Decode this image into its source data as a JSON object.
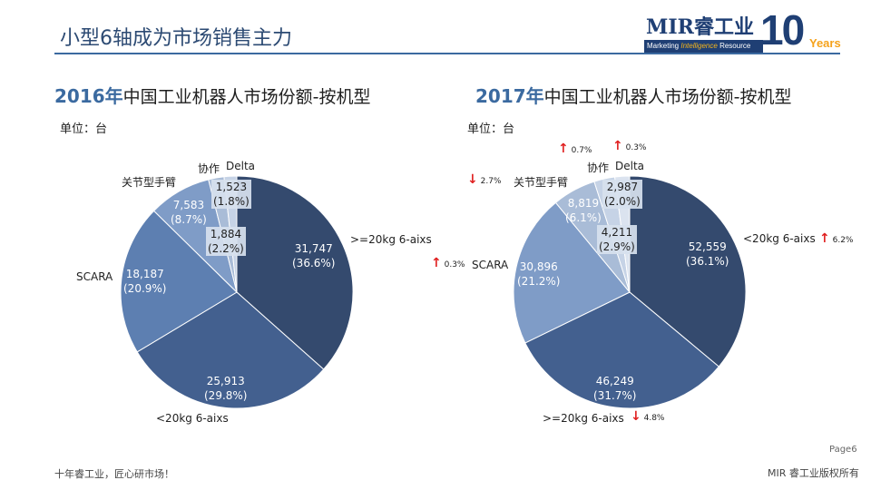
{
  "header": {
    "title": "小型6轴成为市场销售主力",
    "logo": {
      "brand_prefix": "MIR",
      "brand_cn": "睿工业",
      "tagline_a": "Marketing ",
      "tagline_b": "Intelligence",
      "tagline_c": " Resource",
      "ten": "10",
      "years": "Years"
    }
  },
  "colors": {
    "dark": "#344a6e",
    "mid": "#43608f",
    "medium": "#5d7fb1",
    "light": "#7f9cc7",
    "lighter": "#a9bcd7",
    "lightest": "#c6d3e6",
    "palest": "#dbe3ef",
    "rule": "#3b6aa0",
    "up": "#e02020",
    "down": "#e02020"
  },
  "chart_data": [
    {
      "type": "pie",
      "title_year": "2016年",
      "title_rest": "中国工业机器人市场份额-按机型",
      "unit": "单位：台",
      "slices": [
        {
          "name": ">=20kg 6-aixs",
          "value": 31747,
          "value_label": "31,747",
          "pct_label": "(36.6%)",
          "color": "#344a6e"
        },
        {
          "name": "<20kg 6-aixs",
          "value": 25913,
          "value_label": "25,913",
          "pct_label": "(29.8%)",
          "color": "#43608f"
        },
        {
          "name": "SCARA",
          "value": 18187,
          "value_label": "18,187",
          "pct_label": "(20.9%)",
          "color": "#5d7fb1"
        },
        {
          "name": "关节型手臂",
          "value": 7583,
          "value_label": "7,583",
          "pct_label": "(8.7%)",
          "color": "#7f9cc7"
        },
        {
          "name": "协作",
          "value": 1884,
          "value_label": "1,884",
          "pct_label": "(2.2%)",
          "color": "#a9bcd7"
        },
        {
          "name": "Delta",
          "value": 1523,
          "value_label": "1,523",
          "pct_label": "(1.8%)",
          "color": "#c6d3e6"
        }
      ]
    },
    {
      "type": "pie",
      "title_year": "2017年",
      "title_rest": "中国工业机器人市场份额-按机型",
      "unit": "单位：台",
      "slices": [
        {
          "name": "<20kg 6-aixs",
          "value": 52559,
          "value_label": "52,559",
          "pct_label": "(36.1%)",
          "color": "#344a6e",
          "change": "6.2%",
          "direction": "up"
        },
        {
          "name": ">=20kg 6-aixs",
          "value": 46249,
          "value_label": "46,249",
          "pct_label": "(31.7%)",
          "color": "#43608f",
          "change": "4.8%",
          "direction": "down"
        },
        {
          "name": "SCARA",
          "value": 30896,
          "value_label": "30,896",
          "pct_label": "(21.2%)",
          "color": "#7f9cc7",
          "change": "0.3%",
          "direction": "up"
        },
        {
          "name": "关节型手臂",
          "value": 8819,
          "value_label": "8,819",
          "pct_label": "(6.1%)",
          "color": "#a9bcd7",
          "change": "2.7%",
          "direction": "down"
        },
        {
          "name": "协作",
          "value": 4211,
          "value_label": "4,211",
          "pct_label": "(2.9%)",
          "color": "#c6d3e6",
          "change": "0.7%",
          "direction": "up"
        },
        {
          "name": "Delta",
          "value": 2987,
          "value_label": "2,987",
          "pct_label": "(2.0%)",
          "color": "#dbe3ef",
          "change": "0.3%",
          "direction": "up"
        }
      ]
    }
  ],
  "footer": {
    "slogan": "十年睿工业，匠心研市场！",
    "page": "Page6",
    "copyright": "MIR 睿工业版权所有"
  }
}
